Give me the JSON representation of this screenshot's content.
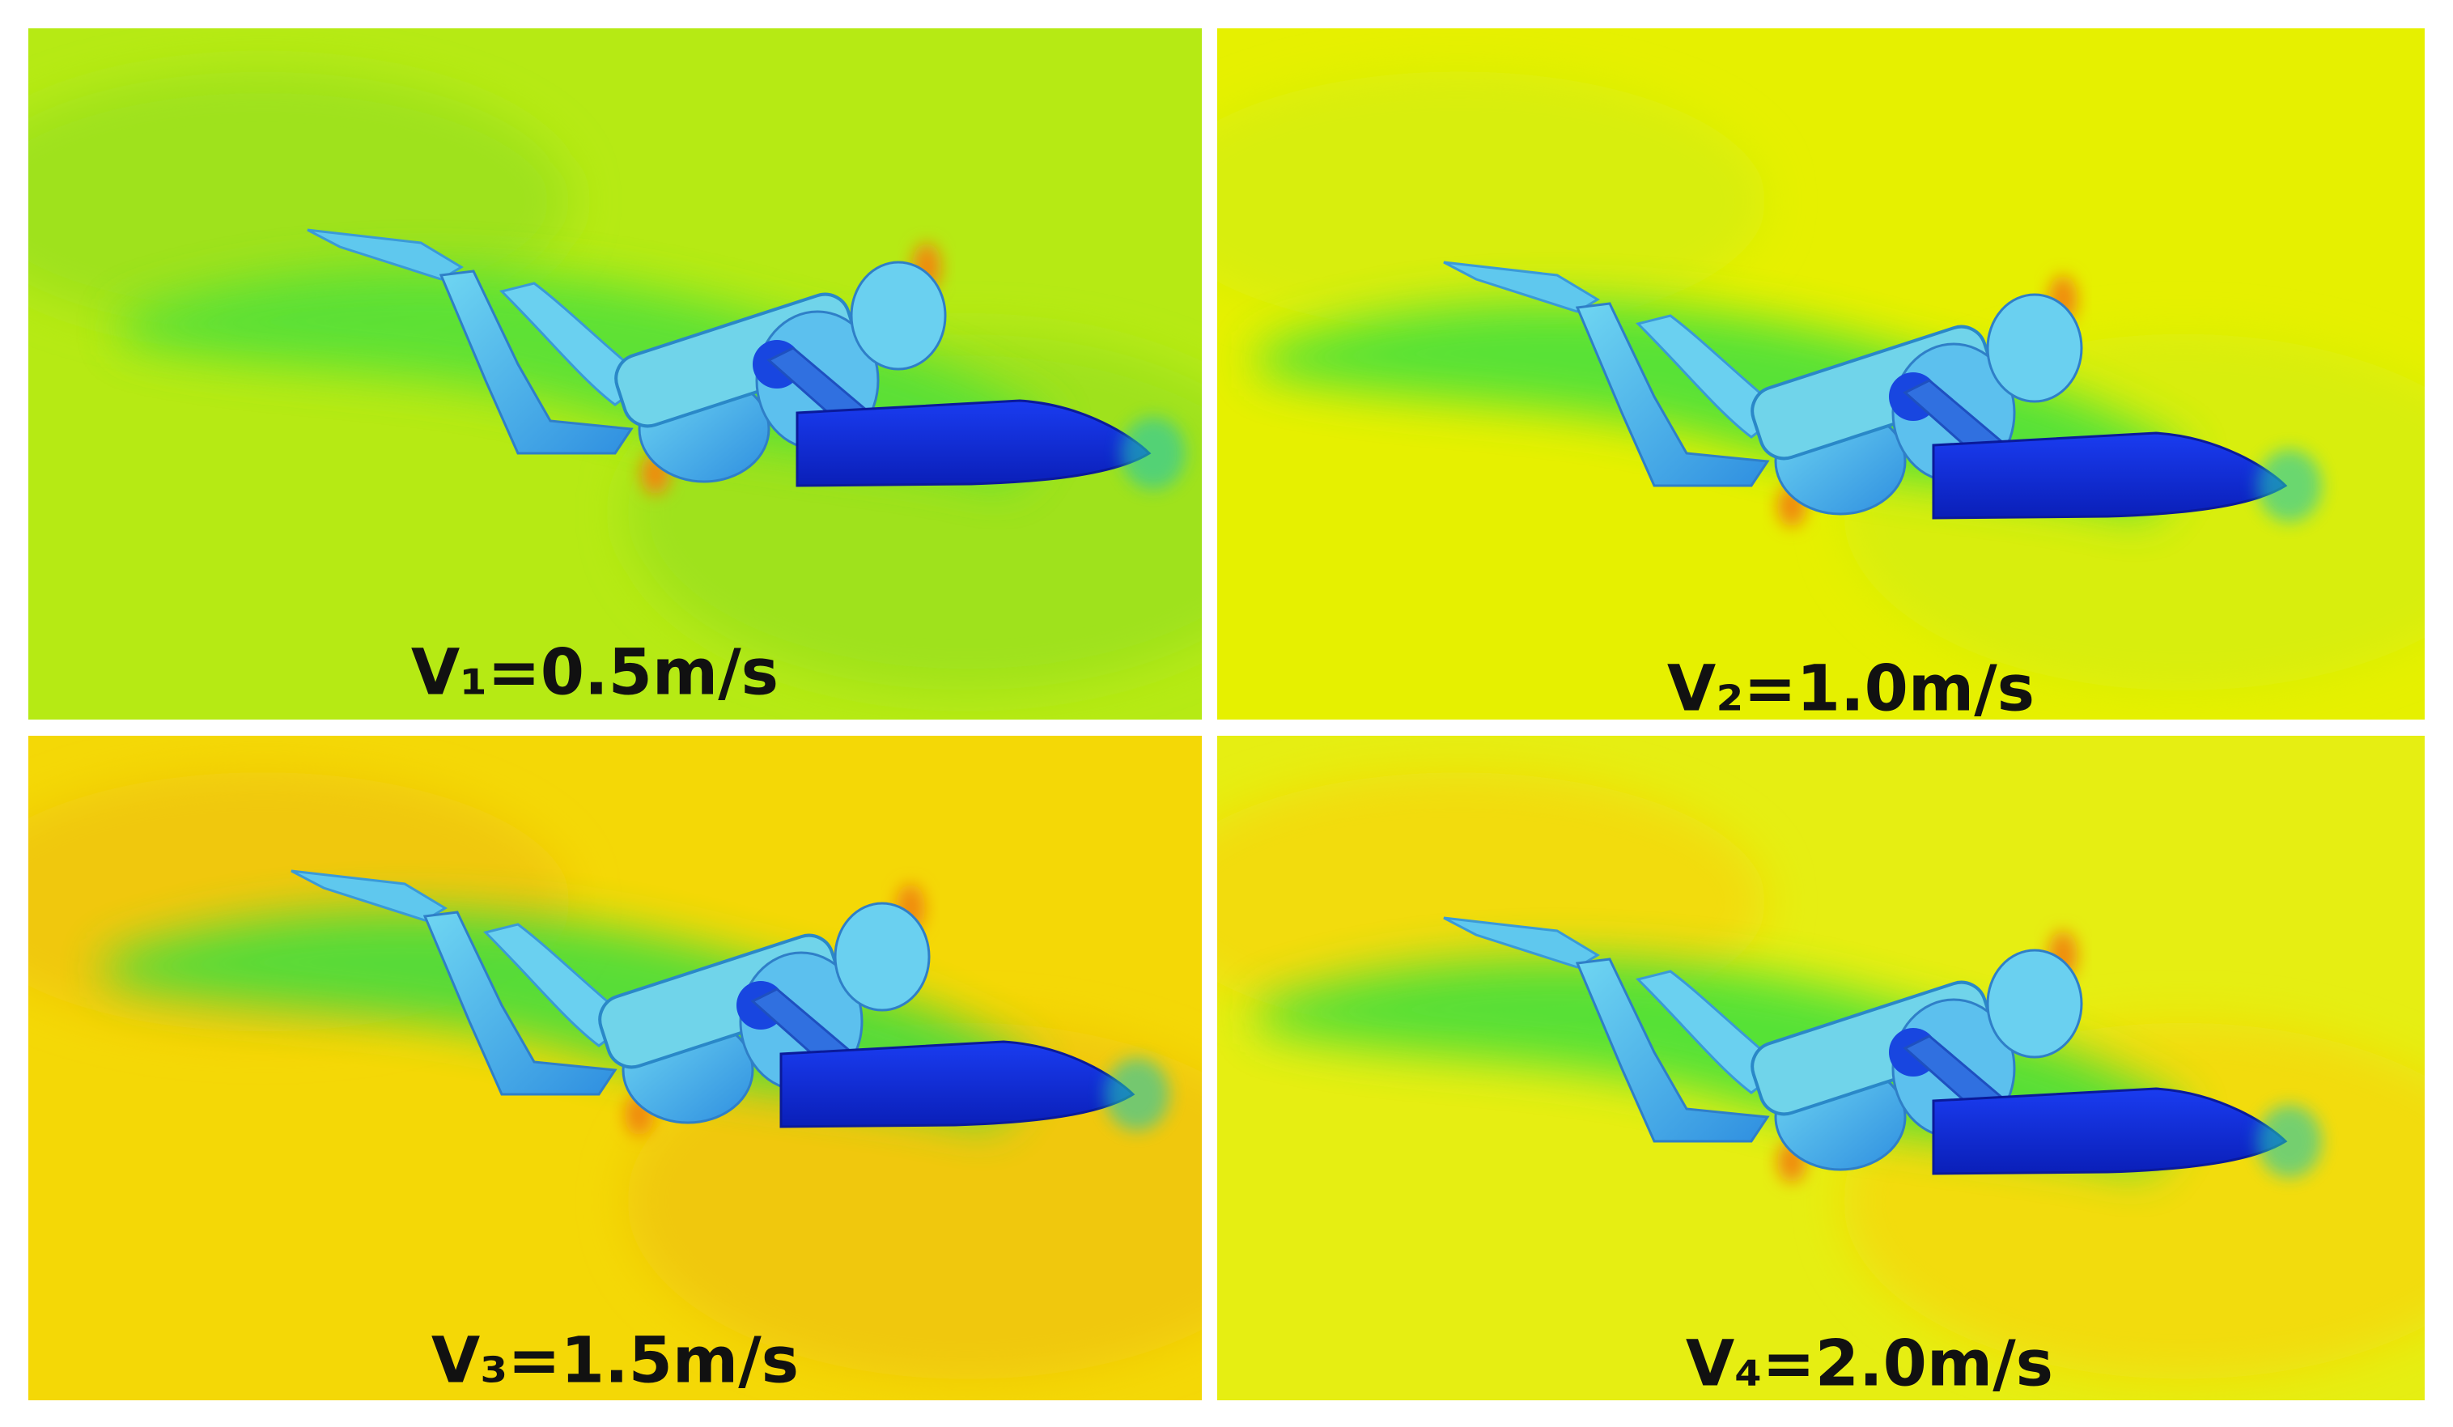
{
  "panels": [
    {
      "label": "V₁=0.5m/s"
    },
    {
      "label": "V₂=1.0m/s"
    },
    {
      "label": "V₃=1.5m/s"
    },
    {
      "label": "V₄=2.0m/s"
    }
  ]
}
